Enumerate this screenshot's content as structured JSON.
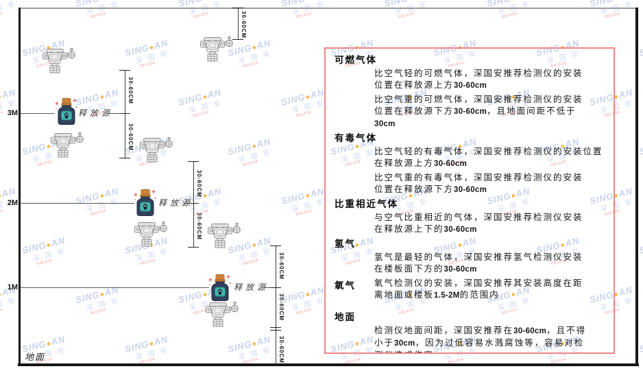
{
  "diagram": {
    "height_labels": [
      "3M",
      "2M",
      "1M"
    ],
    "ground_label": "地面",
    "release_source_label": "释放源",
    "dim_label": "30-60CM"
  },
  "watermark": {
    "brand_prefix": "SING",
    "brand_dot": "●",
    "brand_suffix": "AN",
    "sub_brand": "深 国 安",
    "code": "681434"
  },
  "panel": {
    "sections": [
      {
        "heading": "可燃气体",
        "inline": false,
        "paragraphs": [
          [
            "比空气轻的可燃气体，深国安推荐检测仪的安装",
            "位置在释放源上方30-60cm"
          ],
          [
            "比空气重的可燃气体，深国安推荐检测仪的安装",
            "位置在释放源下方30-60cm，且地面间距不低于",
            "30cm"
          ]
        ]
      },
      {
        "heading": "有毒气体",
        "inline": false,
        "paragraphs": [
          [
            "比空气轻的有毒气体，深国安推荐检测仪的安装位置",
            "在释放源上方30-60cm"
          ],
          [
            "比空气重的有毒气体，深国安推荐检测仪的安装",
            "位置在释放源下方30-60cm"
          ]
        ]
      },
      {
        "heading": "比重相近气体",
        "inline": false,
        "paragraphs": [
          [
            "与空气比重相近的气体，深国安推荐检测仪安装",
            "在释放源上下的30-60cm"
          ]
        ]
      },
      {
        "heading": "氢气",
        "inline": false,
        "paragraphs": [
          [
            "氢气是最轻的气体，深国安推荐氢气检测仪安装",
            "在楼板面下方的30-60cm"
          ]
        ]
      },
      {
        "heading": "氧气",
        "inline": true,
        "paragraphs": [
          [
            "氧气检测仪的安装，深国安推荐其安装高度在距",
            "离地面或楼板1.5-2M的范围内"
          ]
        ]
      },
      {
        "heading": "地面",
        "inline": false,
        "gap_big": true,
        "paragraphs": [
          [
            "检测仪地面间距，深国安推荐在30-60cm，且不得",
            "小于30cm，因为过低容易水溅腐蚀等，容易对检",
            "测仪造成伤害"
          ]
        ]
      }
    ]
  },
  "colors": {
    "panel_border": "#ef8585",
    "bottle_body": "#31405a",
    "bottle_cap": "#d98a3d",
    "bottle_tag": "#43b7ae",
    "watermark_blue": "#7a94d0",
    "watermark_dot": "#f2aa28",
    "sparkle_red": "#e05a5a"
  }
}
